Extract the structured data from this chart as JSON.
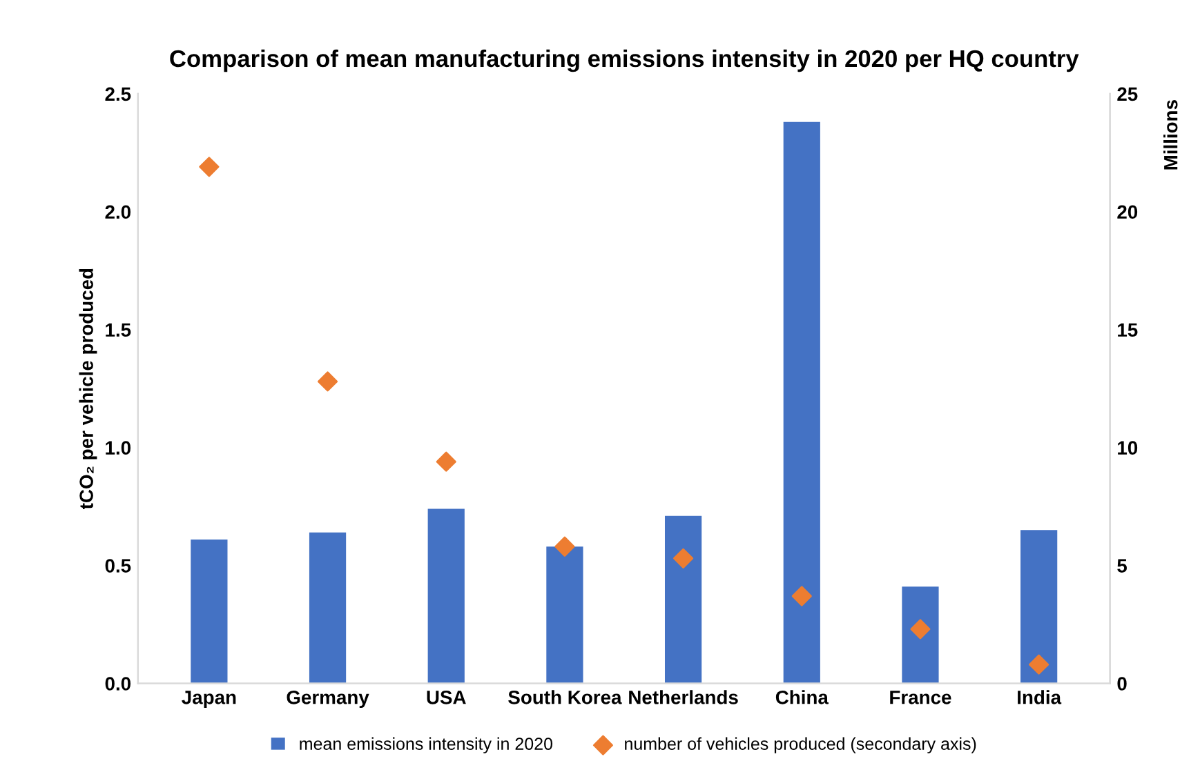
{
  "chart_data": {
    "type": "bar",
    "title": "Comparison of mean manufacturing emissions intensity in 2020 per HQ country",
    "ylabel": "tCO₂ per vehicle produced",
    "y2label": "Millions",
    "categories": [
      "Japan",
      "Germany",
      "USA",
      "South Korea",
      "Netherlands",
      "China",
      "France",
      "India"
    ],
    "series": [
      {
        "name": "mean emissions intensity in 2020",
        "color": "#4472c4",
        "values": [
          0.61,
          0.64,
          0.74,
          0.58,
          0.71,
          2.38,
          0.41,
          0.65
        ]
      },
      {
        "name": "number of vehicles produced (secondary axis)",
        "color": "#ed7d31",
        "type": "scatter",
        "axis": "y2",
        "marker": "diamond",
        "values": [
          21.9,
          12.8,
          9.4,
          5.8,
          5.3,
          3.7,
          2.3,
          0.8
        ]
      }
    ],
    "ylim": [
      0,
      2.5
    ],
    "yticks": [
      {
        "value": 0,
        "label": "0.0"
      },
      {
        "value": 0.5,
        "label": "0.5"
      },
      {
        "value": 1,
        "label": "1.0"
      },
      {
        "value": 1.5,
        "label": "1.5"
      },
      {
        "value": 2,
        "label": "2.0"
      },
      {
        "value": 2.5,
        "label": "2.5"
      }
    ],
    "y2lim": [
      0,
      25
    ],
    "y2ticks": [
      0,
      5,
      10,
      15,
      20,
      25
    ],
    "grid": false,
    "legend": "bottom"
  }
}
